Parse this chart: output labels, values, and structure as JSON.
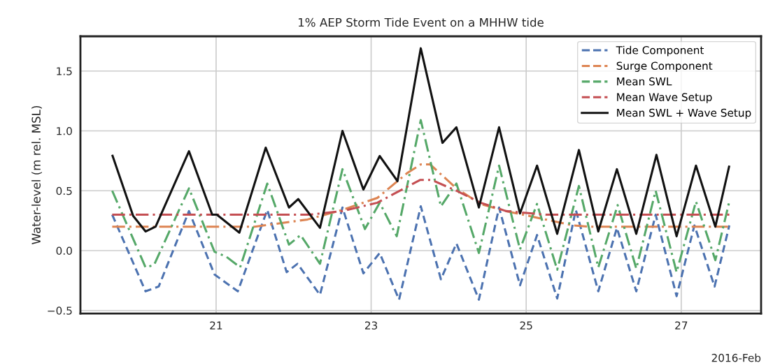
{
  "chart_data": {
    "type": "line",
    "title": "1% AEP Storm Tide Event on a MHHW tide",
    "ylabel": "Water-level (m rel. MSL)",
    "annotations": [
      "2016-Feb"
    ],
    "xlim": [
      19.25,
      28.03
    ],
    "xticks": [
      21,
      23,
      25,
      27
    ],
    "ylim": [
      -0.525,
      1.79
    ],
    "yticks": [
      {
        "value": -0.5,
        "label": "−0.5"
      },
      {
        "value": 0,
        "label": "0.0"
      },
      {
        "value": 0.5,
        "label": "0.5"
      },
      {
        "value": 1.0,
        "label": "1.0"
      },
      {
        "value": 1.5,
        "label": "1.5"
      }
    ],
    "grid": true,
    "legend": "top right",
    "marker": "none",
    "series": [
      {
        "name": "Tide Component",
        "color": "#4c72b0",
        "line_style": "dashed",
        "x": [
          19.66,
          20.09,
          20.26,
          20.65,
          20.98,
          21.28,
          21.66,
          21.91,
          22.05,
          22.34,
          22.63,
          22.9,
          23.11,
          23.36,
          23.64,
          23.9,
          24.1,
          24.39,
          24.65,
          24.92,
          25.14,
          25.4,
          25.64,
          25.93,
          26.17,
          26.42,
          26.67,
          26.94,
          27.17,
          27.43,
          27.62
        ],
        "values": [
          0.3,
          -0.34,
          -0.3,
          0.33,
          -0.2,
          -0.34,
          0.34,
          -0.18,
          -0.11,
          -0.37,
          0.36,
          -0.19,
          -0.02,
          -0.41,
          0.37,
          -0.24,
          0.06,
          -0.41,
          0.36,
          -0.29,
          0.13,
          -0.4,
          0.34,
          -0.34,
          0.19,
          -0.34,
          0.3,
          -0.38,
          0.21,
          -0.3,
          0.21
        ]
      },
      {
        "name": "Surge Component",
        "color": "#dd8452",
        "line_style": "dashdot",
        "x": [
          19.66,
          21.5,
          21.61,
          22.18,
          22.63,
          23.08,
          23.47,
          23.64,
          23.76,
          24.1,
          24.41,
          24.74,
          25.25,
          25.61,
          25.8,
          27.62
        ],
        "values": [
          0.2,
          0.2,
          0.21,
          0.26,
          0.34,
          0.44,
          0.65,
          0.72,
          0.72,
          0.52,
          0.39,
          0.33,
          0.26,
          0.21,
          0.2,
          0.2
        ]
      },
      {
        "name": "Mean SWL",
        "color": "#55a868",
        "line_style": "dashdot",
        "x": [
          19.66,
          20.09,
          20.2,
          20.65,
          20.98,
          21.13,
          21.31,
          21.66,
          21.94,
          22.09,
          22.34,
          22.63,
          22.92,
          23.11,
          23.33,
          23.64,
          23.9,
          24.1,
          24.39,
          24.65,
          24.92,
          25.14,
          25.4,
          25.68,
          25.93,
          26.18,
          26.42,
          26.67,
          26.94,
          27.19,
          27.44,
          27.62
        ],
        "values": [
          0.5,
          -0.14,
          -0.12,
          0.52,
          -0.01,
          -0.05,
          -0.14,
          0.56,
          0.05,
          0.13,
          -0.11,
          0.68,
          0.18,
          0.4,
          0.12,
          1.09,
          0.37,
          0.56,
          -0.02,
          0.71,
          0.01,
          0.39,
          -0.16,
          0.54,
          -0.14,
          0.38,
          -0.15,
          0.5,
          -0.18,
          0.41,
          -0.08,
          0.41
        ]
      },
      {
        "name": "Mean Wave Setup",
        "color": "#c44e52",
        "line_style": "dashdot",
        "x": [
          19.66,
          22.2,
          22.63,
          23.08,
          23.63,
          23.78,
          24.1,
          24.41,
          24.74,
          25.25,
          27.62
        ],
        "values": [
          0.3,
          0.3,
          0.33,
          0.4,
          0.59,
          0.59,
          0.5,
          0.4,
          0.33,
          0.3,
          0.3
        ]
      },
      {
        "name": "Mean SWL + Wave Setup",
        "color": "#111111",
        "line_style": "solid",
        "x": [
          19.66,
          19.93,
          20.09,
          20.22,
          20.65,
          20.95,
          21.01,
          21.3,
          21.64,
          21.94,
          22.06,
          22.34,
          22.63,
          22.9,
          23.11,
          23.34,
          23.64,
          23.92,
          24.1,
          24.39,
          24.65,
          24.92,
          25.14,
          25.4,
          25.68,
          25.93,
          26.17,
          26.42,
          26.68,
          26.94,
          27.19,
          27.44,
          27.62
        ],
        "values": [
          0.8,
          0.29,
          0.16,
          0.2,
          0.83,
          0.3,
          0.3,
          0.15,
          0.86,
          0.36,
          0.43,
          0.19,
          1.0,
          0.51,
          0.79,
          0.58,
          1.69,
          0.9,
          1.03,
          0.36,
          1.03,
          0.31,
          0.71,
          0.14,
          0.84,
          0.16,
          0.68,
          0.14,
          0.8,
          0.12,
          0.71,
          0.2,
          0.71
        ]
      }
    ]
  }
}
